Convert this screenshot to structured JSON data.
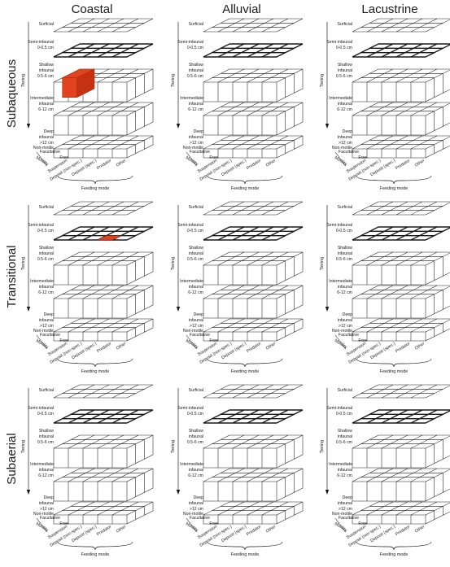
{
  "columns": [
    "Coastal",
    "Alluvial",
    "Lacustrine"
  ],
  "rows": [
    "Subaqueous",
    "Transitional",
    "Subaerial"
  ],
  "tiers": [
    [
      "Surficial",
      "0 cm"
    ],
    [
      "Semi-infaunal",
      "0-0.5 cm"
    ],
    [
      "Shallow",
      "infaunal",
      "0.5-6 cm"
    ],
    [
      "Intermediate",
      "infaunal",
      "6-12 cm"
    ],
    [
      "Deep",
      "infaunal",
      ">12 cm"
    ]
  ],
  "tiering_label": "Tiering",
  "motility_label": "Motility",
  "motility_categories": [
    "Non-motile",
    "Facultative",
    "Free"
  ],
  "feeding_categories": [
    "Suspension",
    "Deposit (non-spec.)",
    "Deposit (spec.)",
    "Predator",
    "Other"
  ],
  "feeding_mode_label": "Feeding mode",
  "colors": {
    "grid": "#1a1a1a",
    "thick_grid": "#111111",
    "highlight": "#e0431d",
    "highlight_edge": "#b32d10"
  },
  "highlights": [
    {
      "environment": "Coastal",
      "setting": "Subaqueous",
      "tier": "Shallow infaunal",
      "note": "occupied ecospace block"
    },
    {
      "environment": "Coastal",
      "setting": "Transitional",
      "tier": "Semi-infaunal",
      "note": "occupied ecospace cell"
    }
  ]
}
